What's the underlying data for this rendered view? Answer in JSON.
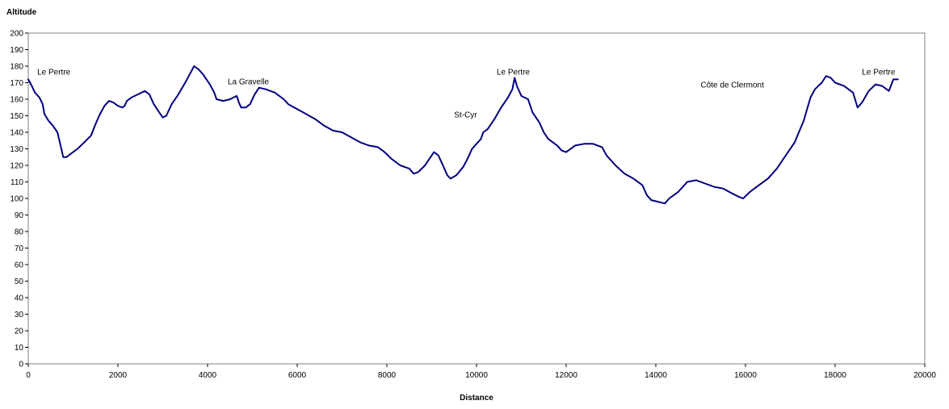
{
  "chart_data": {
    "type": "line",
    "title": "",
    "xlabel": "Distance",
    "ylabel": "Altitude",
    "xlim": [
      0,
      20000
    ],
    "ylim": [
      0,
      200
    ],
    "x_ticks": [
      0,
      2000,
      4000,
      6000,
      8000,
      10000,
      12000,
      14000,
      16000,
      18000,
      20000
    ],
    "y_ticks": [
      0,
      10,
      20,
      30,
      40,
      50,
      60,
      70,
      80,
      90,
      100,
      110,
      120,
      130,
      140,
      150,
      160,
      170,
      180,
      190,
      200
    ],
    "grid": false,
    "legend": "none",
    "line_color": "#000080",
    "series": [
      {
        "name": "",
        "points": [
          [
            0,
            172
          ],
          [
            80,
            168
          ],
          [
            150,
            164
          ],
          [
            250,
            161
          ],
          [
            320,
            157
          ],
          [
            360,
            151
          ],
          [
            450,
            147
          ],
          [
            550,
            144
          ],
          [
            650,
            140
          ],
          [
            720,
            132
          ],
          [
            780,
            125
          ],
          [
            850,
            125
          ],
          [
            950,
            127
          ],
          [
            1100,
            130
          ],
          [
            1250,
            134
          ],
          [
            1400,
            138
          ],
          [
            1500,
            145
          ],
          [
            1600,
            151
          ],
          [
            1700,
            156
          ],
          [
            1800,
            159
          ],
          [
            1900,
            158
          ],
          [
            2000,
            156
          ],
          [
            2100,
            155
          ],
          [
            2150,
            156
          ],
          [
            2200,
            159
          ],
          [
            2300,
            161
          ],
          [
            2450,
            163
          ],
          [
            2600,
            165
          ],
          [
            2700,
            163
          ],
          [
            2800,
            157
          ],
          [
            2900,
            153
          ],
          [
            3000,
            149
          ],
          [
            3080,
            150
          ],
          [
            3200,
            157
          ],
          [
            3350,
            163
          ],
          [
            3500,
            170
          ],
          [
            3600,
            175
          ],
          [
            3700,
            180
          ],
          [
            3800,
            178
          ],
          [
            3900,
            175
          ],
          [
            4050,
            169
          ],
          [
            4150,
            164
          ],
          [
            4200,
            160
          ],
          [
            4350,
            159
          ],
          [
            4500,
            160
          ],
          [
            4650,
            162
          ],
          [
            4700,
            158
          ],
          [
            4750,
            155
          ],
          [
            4850,
            155
          ],
          [
            4950,
            157
          ],
          [
            5050,
            163
          ],
          [
            5150,
            167
          ],
          [
            5300,
            166
          ],
          [
            5500,
            164
          ],
          [
            5700,
            160
          ],
          [
            5800,
            157
          ],
          [
            6000,
            154
          ],
          [
            6200,
            151
          ],
          [
            6400,
            148
          ],
          [
            6500,
            146
          ],
          [
            6600,
            144
          ],
          [
            6800,
            141
          ],
          [
            7000,
            140
          ],
          [
            7200,
            137
          ],
          [
            7400,
            134
          ],
          [
            7600,
            132
          ],
          [
            7800,
            131
          ],
          [
            7950,
            128
          ],
          [
            8100,
            124
          ],
          [
            8300,
            120
          ],
          [
            8500,
            118
          ],
          [
            8600,
            115
          ],
          [
            8700,
            116
          ],
          [
            8850,
            120
          ],
          [
            8950,
            124
          ],
          [
            9050,
            128
          ],
          [
            9150,
            126
          ],
          [
            9250,
            120
          ],
          [
            9350,
            114
          ],
          [
            9420,
            112
          ],
          [
            9550,
            114
          ],
          [
            9700,
            119
          ],
          [
            9800,
            124
          ],
          [
            9900,
            130
          ],
          [
            10000,
            133
          ],
          [
            10100,
            136
          ],
          [
            10150,
            140
          ],
          [
            10250,
            142
          ],
          [
            10400,
            148
          ],
          [
            10550,
            155
          ],
          [
            10700,
            161
          ],
          [
            10800,
            166
          ],
          [
            10850,
            173
          ],
          [
            10900,
            168
          ],
          [
            11000,
            162
          ],
          [
            11150,
            160
          ],
          [
            11250,
            152
          ],
          [
            11400,
            146
          ],
          [
            11500,
            140
          ],
          [
            11600,
            136
          ],
          [
            11800,
            132
          ],
          [
            11900,
            129
          ],
          [
            12000,
            128
          ],
          [
            12200,
            132
          ],
          [
            12400,
            133
          ],
          [
            12600,
            133
          ],
          [
            12800,
            131
          ],
          [
            12900,
            126
          ],
          [
            13100,
            120
          ],
          [
            13300,
            115
          ],
          [
            13500,
            112
          ],
          [
            13700,
            108
          ],
          [
            13800,
            102
          ],
          [
            13900,
            99
          ],
          [
            14050,
            98
          ],
          [
            14200,
            97
          ],
          [
            14300,
            100
          ],
          [
            14500,
            104
          ],
          [
            14700,
            110
          ],
          [
            14900,
            111
          ],
          [
            15100,
            109
          ],
          [
            15300,
            107
          ],
          [
            15500,
            106
          ],
          [
            15700,
            103
          ],
          [
            15850,
            101
          ],
          [
            15950,
            100
          ],
          [
            16100,
            104
          ],
          [
            16300,
            108
          ],
          [
            16500,
            112
          ],
          [
            16700,
            118
          ],
          [
            16900,
            126
          ],
          [
            17100,
            134
          ],
          [
            17300,
            147
          ],
          [
            17450,
            161
          ],
          [
            17550,
            166
          ],
          [
            17700,
            170
          ],
          [
            17800,
            174
          ],
          [
            17900,
            173
          ],
          [
            18000,
            170
          ],
          [
            18200,
            168
          ],
          [
            18400,
            164
          ],
          [
            18500,
            155
          ],
          [
            18600,
            158
          ],
          [
            18750,
            165
          ],
          [
            18900,
            169
          ],
          [
            19050,
            168
          ],
          [
            19200,
            165
          ],
          [
            19300,
            172
          ],
          [
            19400,
            172
          ]
        ]
      }
    ],
    "annotations": [
      {
        "text": "Le Pertre",
        "x": 200,
        "y": 175
      },
      {
        "text": "La Gravelle",
        "x": 4450,
        "y": 169
      },
      {
        "text": "St-Cyr",
        "x": 9500,
        "y": 149
      },
      {
        "text": "Le Pertre",
        "x": 10450,
        "y": 175
      },
      {
        "text": "Côte de Clermont",
        "x": 15000,
        "y": 167
      },
      {
        "text": "Le Pertre",
        "x": 18600,
        "y": 175
      }
    ]
  }
}
